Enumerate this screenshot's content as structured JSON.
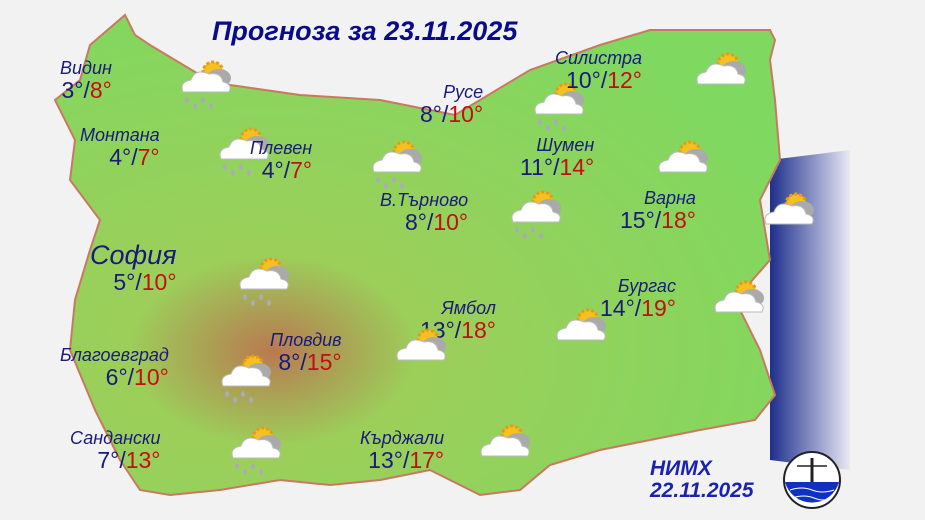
{
  "title": "Прогноза за 23.11.2025",
  "colors": {
    "title": "#0a0a8c",
    "min_temp": "#1a1a7a",
    "max_temp": "#c01010",
    "land": "#7fd35a",
    "sea": "#2a3fa0"
  },
  "cities": [
    {
      "name": "Видин",
      "min": "3°",
      "max": "8°",
      "icon": "sun-cloud-rain"
    },
    {
      "name": "Монтана",
      "min": "4°",
      "max": "7°",
      "icon": "sun-cloud-rain"
    },
    {
      "name": "Плевен",
      "min": "4°",
      "max": "7°",
      "icon": "sun-cloud-rain"
    },
    {
      "name": "Русе",
      "min": "8°",
      "max": "10°",
      "icon": "sun-cloud-rain"
    },
    {
      "name": "Силистра",
      "min": "10°",
      "max": "12°",
      "icon": "sun-cloud"
    },
    {
      "name": "Шумен",
      "min": "11°",
      "max": "14°",
      "icon": "sun-cloud"
    },
    {
      "name": "В.Търново",
      "min": "8°",
      "max": "10°",
      "icon": "sun-cloud-rain"
    },
    {
      "name": "Варна",
      "min": "15°",
      "max": "18°",
      "icon": "sun-cloud"
    },
    {
      "name": "София",
      "min": "5°",
      "max": "10°",
      "icon": "sun-cloud-rain"
    },
    {
      "name": "Бургас",
      "min": "14°",
      "max": "19°",
      "icon": "sun-cloud"
    },
    {
      "name": "Ямбол",
      "min": "13°",
      "max": "18°",
      "icon": "sun-cloud"
    },
    {
      "name": "Пловдив",
      "min": "8°",
      "max": "15°",
      "icon": "sun-cloud"
    },
    {
      "name": "Благоевград",
      "min": "6°",
      "max": "10°",
      "icon": "sun-cloud-rain"
    },
    {
      "name": "Сандански",
      "min": "7°",
      "max": "13°",
      "icon": "sun-cloud-rain"
    },
    {
      "name": "Кърджали",
      "min": "13°",
      "max": "17°",
      "icon": "sun-cloud"
    }
  ],
  "footer": {
    "org": "НИМХ",
    "date": "22.11.2025"
  }
}
